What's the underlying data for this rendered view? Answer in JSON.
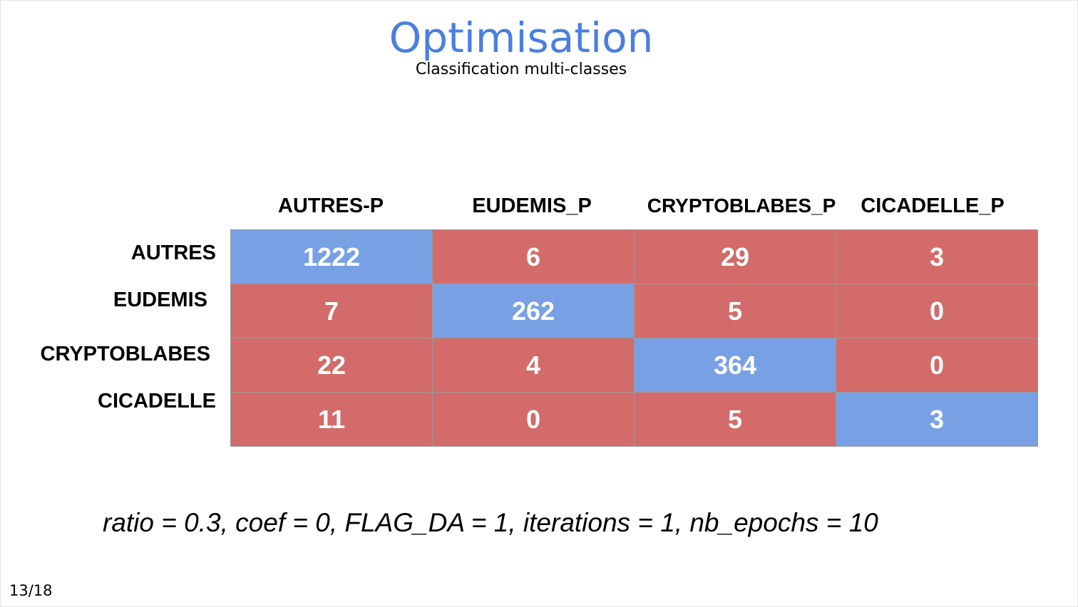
{
  "slide": {
    "title": "Optimisation",
    "subtitle": "Classification multi-classes",
    "params": "ratio = 0.3, coef = 0, FLAG_DA = 1, iterations = 1, nb_epochs = 10",
    "page_number": "13/18"
  },
  "matrix": {
    "columns": [
      "AUTRES-P",
      "EUDEMIS_P",
      "CRYPTOBLABES_P",
      "CICADELLE_P"
    ],
    "rows": [
      "AUTRES",
      "EUDEMIS",
      "CRYPTOBLABES",
      "CICADELLE"
    ],
    "values": [
      [
        "1222",
        "6",
        "29",
        "3"
      ],
      [
        "7",
        "262",
        "5",
        "0"
      ],
      [
        "22",
        "4",
        "364",
        "0"
      ],
      [
        "11",
        "0",
        "5",
        "3"
      ]
    ],
    "colors": {
      "diagonal": "#78a0e4",
      "off_diagonal": "#d26b69"
    }
  }
}
